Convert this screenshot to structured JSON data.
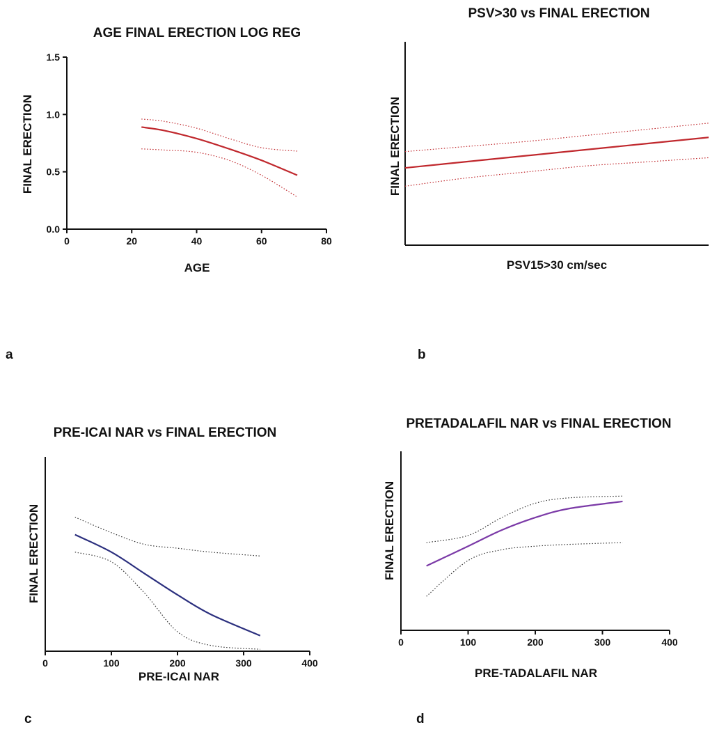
{
  "panels": [
    {
      "letter": "a",
      "title": "AGE FINAL ERECTION LOG REG",
      "xlabel": "AGE",
      "ylabel": "FINAL ERECTION"
    },
    {
      "letter": "b",
      "title": "PSV>30 vs FINAL ERECTION",
      "xlabel": "PSV15>30 cm/sec",
      "ylabel": "FINAL ERECTION"
    },
    {
      "letter": "c",
      "title": "PRE-ICAI NAR vs FINAL ERECTION",
      "xlabel": "PRE-ICAI NAR",
      "ylabel": "FINAL ERECTION"
    },
    {
      "letter": "d",
      "title": "PRETADALAFIL NAR vs FINAL ERECTION",
      "xlabel": "PRE-TADALAFIL NAR",
      "ylabel": "FINAL ERECTION"
    }
  ],
  "chart_data": [
    {
      "type": "line",
      "title": "AGE FINAL ERECTION LOG REG",
      "xlabel": "AGE",
      "ylabel": "FINAL ERECTION",
      "xlim": [
        0,
        80
      ],
      "ylim": [
        0,
        1.5
      ],
      "xticks": [
        "0",
        "20",
        "40",
        "60",
        "80"
      ],
      "yticks": [
        "0.0",
        "0.5",
        "1.0",
        "1.5"
      ],
      "colors": {
        "fit": "#c0282d",
        "ci": "#c0282d"
      },
      "series": [
        {
          "role": "fit",
          "x": [
            23,
            30,
            40,
            50,
            60,
            71
          ],
          "y": [
            0.89,
            0.86,
            0.79,
            0.7,
            0.6,
            0.47
          ]
        },
        {
          "role": "ci-upper",
          "x": [
            23,
            30,
            40,
            50,
            60,
            71
          ],
          "y": [
            0.96,
            0.94,
            0.88,
            0.79,
            0.71,
            0.68
          ]
        },
        {
          "role": "ci-lower",
          "x": [
            23,
            30,
            40,
            50,
            60,
            71
          ],
          "y": [
            0.7,
            0.69,
            0.67,
            0.6,
            0.47,
            0.28
          ]
        }
      ]
    },
    {
      "type": "line",
      "title": "PSV>30 vs FINAL ERECTION",
      "xlabel": "PSV15>30 cm/sec",
      "ylabel": "FINAL ERECTION",
      "xlim": [
        0,
        10
      ],
      "ylim": [
        0,
        10
      ],
      "xticks": [],
      "yticks": [],
      "colors": {
        "fit": "#c0282d",
        "ci": "#c0282d"
      },
      "series": [
        {
          "role": "fit",
          "x": [
            0,
            2,
            4,
            6,
            8,
            10
          ],
          "y": [
            3.8,
            4.1,
            4.4,
            4.7,
            5.0,
            5.3
          ]
        },
        {
          "role": "ci-upper",
          "x": [
            0,
            2,
            4,
            6,
            8,
            10
          ],
          "y": [
            4.6,
            4.85,
            5.1,
            5.4,
            5.7,
            6.0
          ]
        },
        {
          "role": "ci-lower",
          "x": [
            0,
            2,
            4,
            6,
            8,
            10
          ],
          "y": [
            2.9,
            3.3,
            3.6,
            3.9,
            4.1,
            4.3
          ]
        }
      ]
    },
    {
      "type": "line",
      "title": "PRE-ICAI NAR vs FINAL ERECTION",
      "xlabel": "PRE-ICAI NAR",
      "ylabel": "FINAL ERECTION",
      "xlim": [
        0,
        400
      ],
      "ylim": [
        0,
        1
      ],
      "xticks": [
        "0",
        "100",
        "200",
        "300",
        "400"
      ],
      "yticks": [],
      "colors": {
        "fit": "#2b2f7e",
        "ci": "#333333"
      },
      "series": [
        {
          "role": "fit",
          "x": [
            45,
            100,
            150,
            200,
            250,
            325
          ],
          "y": [
            0.6,
            0.51,
            0.4,
            0.29,
            0.19,
            0.08
          ]
        },
        {
          "role": "ci-upper",
          "x": [
            45,
            100,
            150,
            200,
            250,
            325
          ],
          "y": [
            0.69,
            0.61,
            0.55,
            0.53,
            0.51,
            0.49
          ]
        },
        {
          "role": "ci-lower",
          "x": [
            45,
            100,
            150,
            200,
            250,
            325
          ],
          "y": [
            0.51,
            0.46,
            0.3,
            0.1,
            0.03,
            0.01
          ]
        }
      ]
    },
    {
      "type": "line",
      "title": "PRETADALAFIL NAR vs FINAL ERECTION",
      "xlabel": "PRE-TADALAFIL NAR",
      "ylabel": "FINAL ERECTION",
      "xlim": [
        0,
        400
      ],
      "ylim": [
        0,
        1
      ],
      "xticks": [
        "0",
        "100",
        "200",
        "300",
        "400"
      ],
      "yticks": [],
      "colors": {
        "fit": "#7b3aa7",
        "ci": "#333333"
      },
      "series": [
        {
          "role": "fit",
          "x": [
            38,
            100,
            150,
            200,
            250,
            330
          ],
          "y": [
            0.36,
            0.47,
            0.56,
            0.63,
            0.68,
            0.72
          ]
        },
        {
          "role": "ci-upper",
          "x": [
            38,
            100,
            150,
            200,
            250,
            330
          ],
          "y": [
            0.49,
            0.53,
            0.63,
            0.71,
            0.74,
            0.75
          ]
        },
        {
          "role": "ci-lower",
          "x": [
            38,
            100,
            150,
            200,
            250,
            330
          ],
          "y": [
            0.19,
            0.39,
            0.45,
            0.47,
            0.48,
            0.49
          ]
        }
      ]
    }
  ]
}
